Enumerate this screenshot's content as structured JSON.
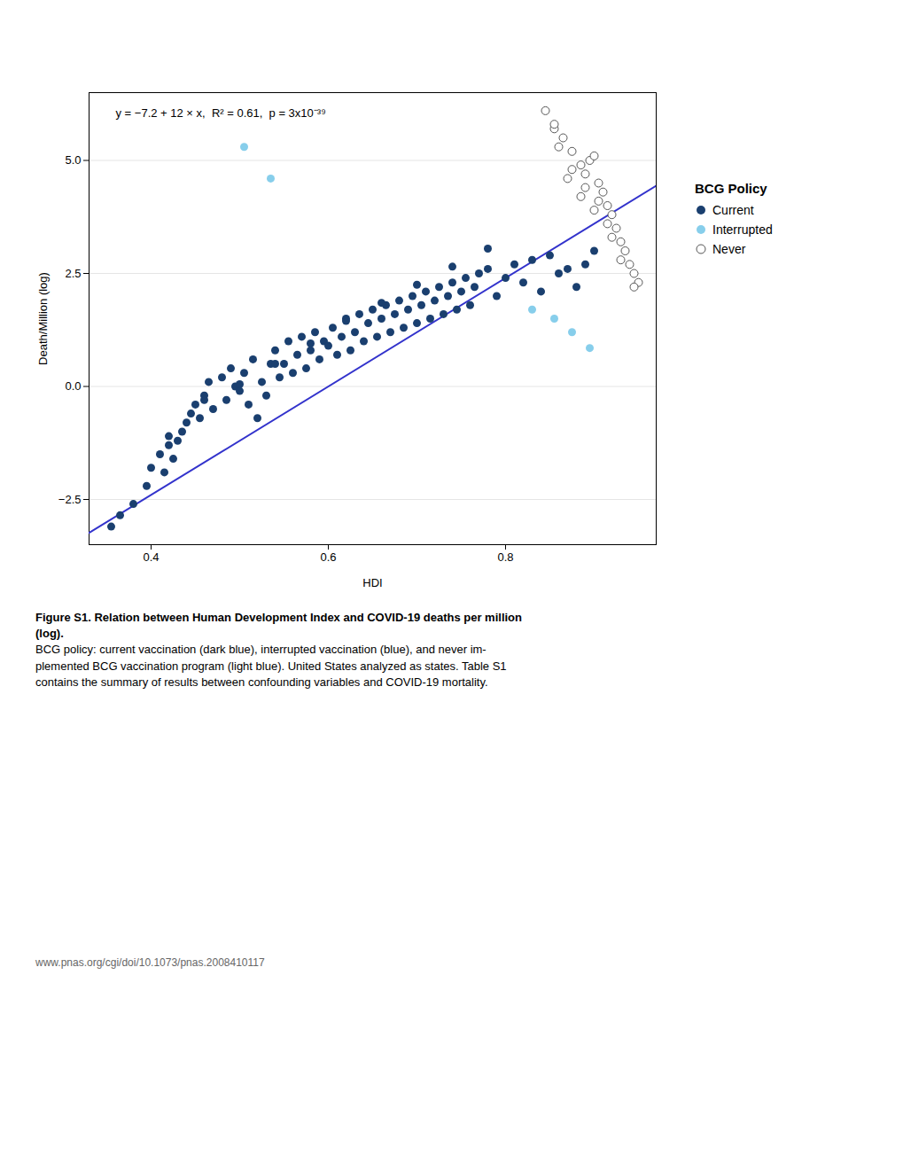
{
  "chart_data": {
    "type": "scatter",
    "xlabel": "HDI",
    "ylabel": "Death/Million (log)",
    "xlim": [
      0.33,
      0.97
    ],
    "ylim": [
      -3.5,
      6.5
    ],
    "xticks": [
      0.4,
      0.6,
      0.8
    ],
    "yticks": [
      -2.5,
      {
        "value": 0,
        "label": "0.0"
      },
      2.5,
      {
        "value": 5,
        "label": "5.0"
      }
    ],
    "grid": "y",
    "legend_title": "BCG Policy",
    "series": [
      {
        "name": "Current",
        "type": "scatter",
        "marker": "filled",
        "color": "#1a3f6f",
        "x": [
          0.355,
          0.365,
          0.38,
          0.395,
          0.4,
          0.41,
          0.415,
          0.42,
          0.425,
          0.43,
          0.435,
          0.44,
          0.445,
          0.45,
          0.455,
          0.46,
          0.465,
          0.47,
          0.48,
          0.485,
          0.49,
          0.495,
          0.5,
          0.505,
          0.51,
          0.515,
          0.52,
          0.525,
          0.53,
          0.535,
          0.54,
          0.545,
          0.55,
          0.555,
          0.56,
          0.565,
          0.57,
          0.575,
          0.58,
          0.585,
          0.59,
          0.595,
          0.6,
          0.605,
          0.61,
          0.615,
          0.62,
          0.625,
          0.63,
          0.635,
          0.64,
          0.645,
          0.65,
          0.655,
          0.66,
          0.665,
          0.67,
          0.675,
          0.68,
          0.685,
          0.69,
          0.695,
          0.7,
          0.705,
          0.71,
          0.715,
          0.72,
          0.725,
          0.73,
          0.735,
          0.74,
          0.745,
          0.75,
          0.755,
          0.76,
          0.765,
          0.77,
          0.78,
          0.79,
          0.8,
          0.81,
          0.82,
          0.83,
          0.84,
          0.85,
          0.86,
          0.87,
          0.88,
          0.89,
          0.9,
          0.42,
          0.46,
          0.5,
          0.54,
          0.58,
          0.62,
          0.66,
          0.7,
          0.74,
          0.78
        ],
        "values": [
          -3.1,
          -2.85,
          -2.6,
          -2.2,
          -1.8,
          -1.5,
          -1.9,
          -1.3,
          -1.6,
          -1.2,
          -1.0,
          -0.8,
          -0.6,
          -0.4,
          -0.7,
          -0.2,
          0.1,
          -0.5,
          0.2,
          -0.3,
          0.4,
          0.0,
          -0.1,
          0.3,
          -0.4,
          0.6,
          -0.7,
          0.1,
          -0.2,
          0.5,
          0.8,
          0.2,
          0.5,
          1.0,
          0.3,
          0.7,
          1.1,
          0.4,
          0.8,
          1.2,
          0.6,
          1.0,
          0.9,
          1.3,
          0.7,
          1.1,
          1.5,
          0.8,
          1.2,
          1.6,
          1.0,
          1.4,
          1.7,
          1.1,
          1.5,
          1.8,
          1.2,
          1.6,
          1.9,
          1.3,
          1.7,
          2.0,
          1.4,
          1.8,
          2.1,
          1.5,
          1.9,
          2.2,
          1.6,
          2.0,
          2.3,
          1.7,
          2.1,
          2.4,
          1.8,
          2.2,
          2.5,
          2.6,
          2.0,
          2.4,
          2.7,
          2.3,
          2.8,
          2.1,
          2.9,
          2.5,
          2.6,
          2.2,
          2.7,
          3.0,
          -1.1,
          -0.3,
          0.05,
          0.5,
          0.95,
          1.45,
          1.85,
          2.25,
          2.65,
          3.05
        ]
      },
      {
        "name": "Interrupted",
        "type": "scatter",
        "marker": "filled",
        "color": "#87CEEB",
        "x": [
          0.505,
          0.535,
          0.83,
          0.855,
          0.875,
          0.895
        ],
        "values": [
          5.3,
          4.6,
          1.7,
          1.5,
          1.2,
          0.85
        ]
      },
      {
        "name": "Never",
        "type": "scatter",
        "marker": "open",
        "color": "#555555",
        "x": [
          0.845,
          0.855,
          0.865,
          0.875,
          0.885,
          0.89,
          0.895,
          0.9,
          0.905,
          0.91,
          0.915,
          0.92,
          0.925,
          0.93,
          0.935,
          0.94,
          0.945,
          0.95,
          0.855,
          0.87,
          0.885,
          0.9,
          0.915,
          0.93,
          0.945,
          0.86,
          0.875,
          0.89,
          0.905,
          0.92
        ],
        "values": [
          6.1,
          5.7,
          5.5,
          5.2,
          4.9,
          4.7,
          5.0,
          5.1,
          4.5,
          4.3,
          4.0,
          3.8,
          3.5,
          3.2,
          3.0,
          2.7,
          2.5,
          2.3,
          5.8,
          4.6,
          4.2,
          3.9,
          3.6,
          2.8,
          2.2,
          5.3,
          4.8,
          4.4,
          4.1,
          3.3
        ]
      },
      {
        "type": "line",
        "line_style": "solid",
        "color": "#3333cc",
        "x": [
          0.33,
          0.97
        ],
        "values": [
          -3.24,
          4.44
        ]
      }
    ],
    "annotations": [
      {
        "text": "y = −7.2 + 12 × x,  R² = 0.61,  p = 3x10⁻³⁹",
        "x": 0.36,
        "y": 6.15
      }
    ],
    "caption_bold": "Figure S1. Relation between Human Development Index and COVID-19 deaths per million\n(log).",
    "caption": " BCG policy: current vaccination (dark blue), interrupted vaccination (blue), and never im-\nplemented BCG vaccination program (light blue). United States analyzed as states. Table S1\ncontains the summary of results between confounding variables and COVID-19 mortality.",
    "footer": "www.pnas.org/cgi/doi/10.1073/pnas.2008410117"
  }
}
